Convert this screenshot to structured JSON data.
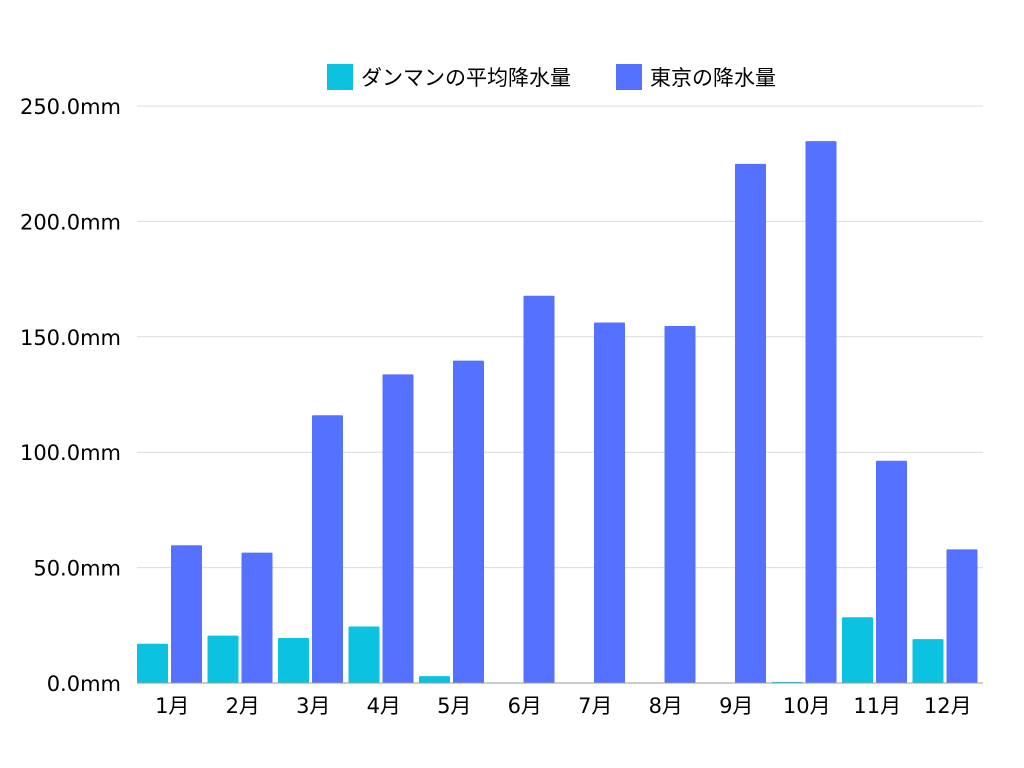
{
  "colors": {
    "dammam": "#0bc3e0",
    "tokyo": "#5472ff",
    "grid": "#dcdcdc",
    "axis": "#999999"
  },
  "legend": {
    "dammam_label": "ダンマンの平均降水量",
    "tokyo_label": "東京の降水量"
  },
  "chart_data": {
    "type": "bar",
    "categories": [
      "1月",
      "2月",
      "3月",
      "4月",
      "5月",
      "6月",
      "7月",
      "8月",
      "9月",
      "10月",
      "11月",
      "12月"
    ],
    "series": [
      {
        "name": "ダンマンの平均降水量",
        "values": [
          17,
          20.5,
          19.5,
          24.5,
          3,
          0,
          0,
          0,
          0,
          0.5,
          28.5,
          19
        ]
      },
      {
        "name": "東京の降水量",
        "values": [
          59.7,
          56.5,
          116.0,
          133.7,
          139.7,
          167.8,
          156.2,
          154.7,
          224.9,
          234.8,
          96.3,
          57.9
        ]
      }
    ],
    "ylim": [
      0,
      250
    ],
    "yticks": [
      "0.0mm",
      "50.0mm",
      "100.0mm",
      "150.0mm",
      "200.0mm",
      "250.0mm"
    ],
    "grid": true,
    "legend_position": "top"
  }
}
